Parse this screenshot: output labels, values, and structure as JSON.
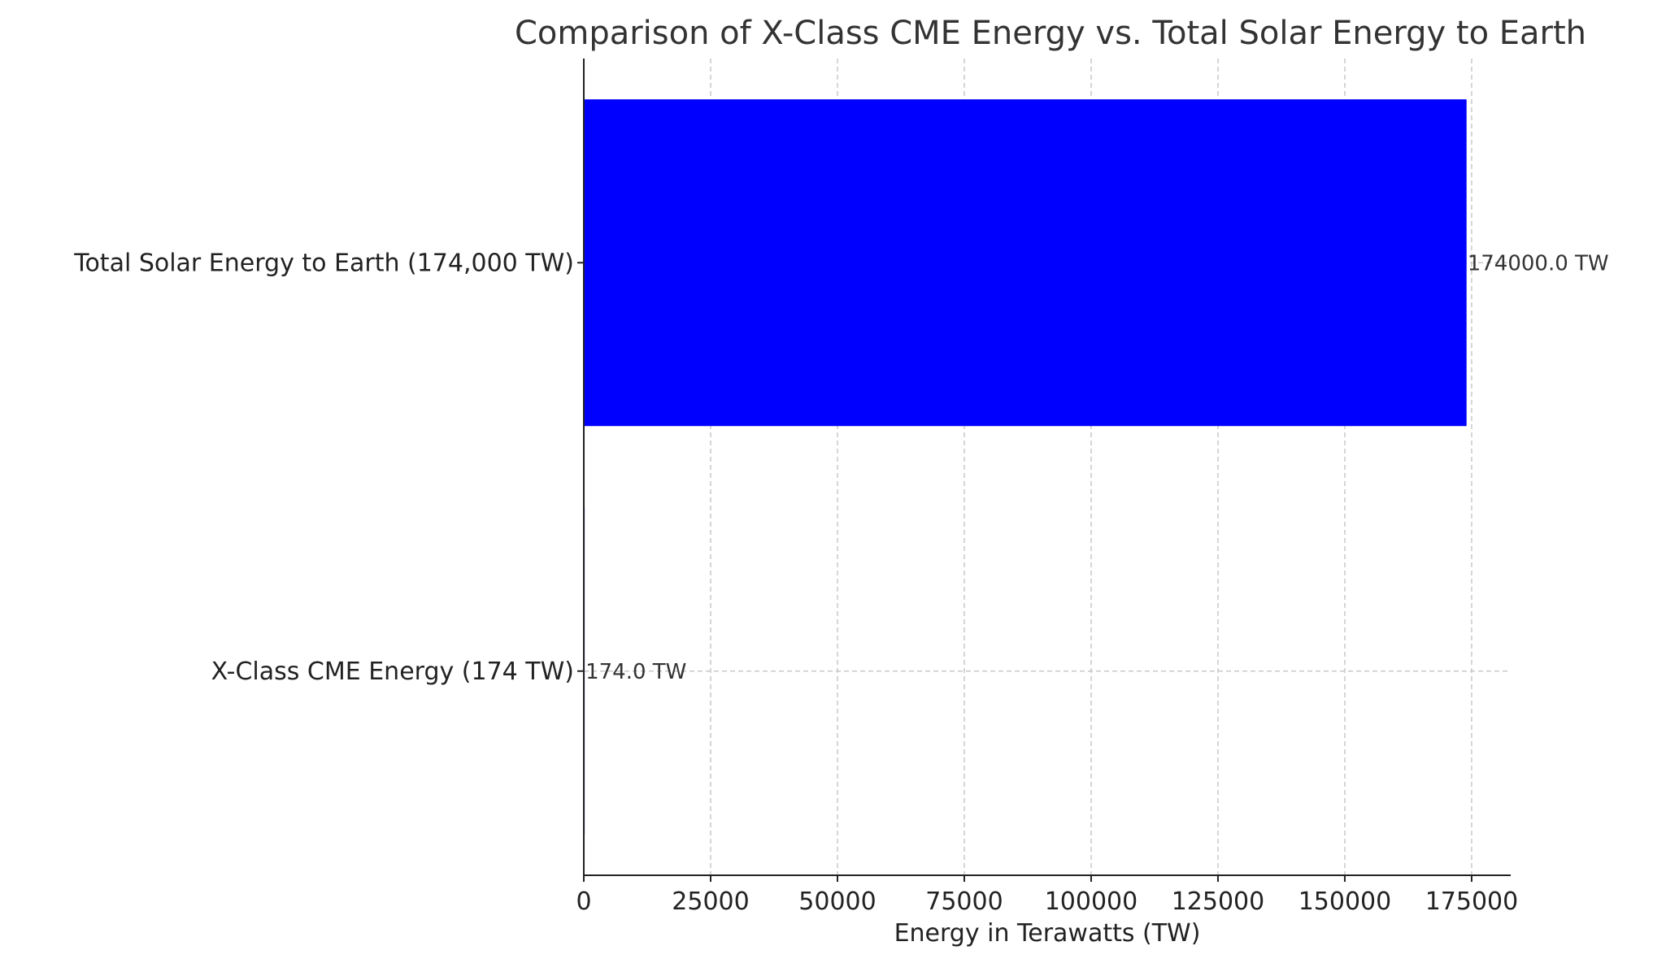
{
  "chart_data": {
    "type": "bar",
    "orientation": "horizontal",
    "title": "Comparison of X-Class CME Energy vs. Total Solar Energy to Earth",
    "xlabel": "Energy in Terawatts (TW)",
    "ylabel": "",
    "categories": [
      "X-Class CME Energy (174 TW)",
      "Total Solar Energy to Earth (174,000 TW)"
    ],
    "values": [
      174,
      174000
    ],
    "data_labels": [
      "174.0 TW",
      "174000.0 TW"
    ],
    "xlim": [
      0,
      182700
    ],
    "xticks": [
      0,
      25000,
      50000,
      75000,
      100000,
      125000,
      150000,
      175000
    ],
    "grid": true,
    "bar_color": "#0000ff",
    "legend": "none"
  }
}
